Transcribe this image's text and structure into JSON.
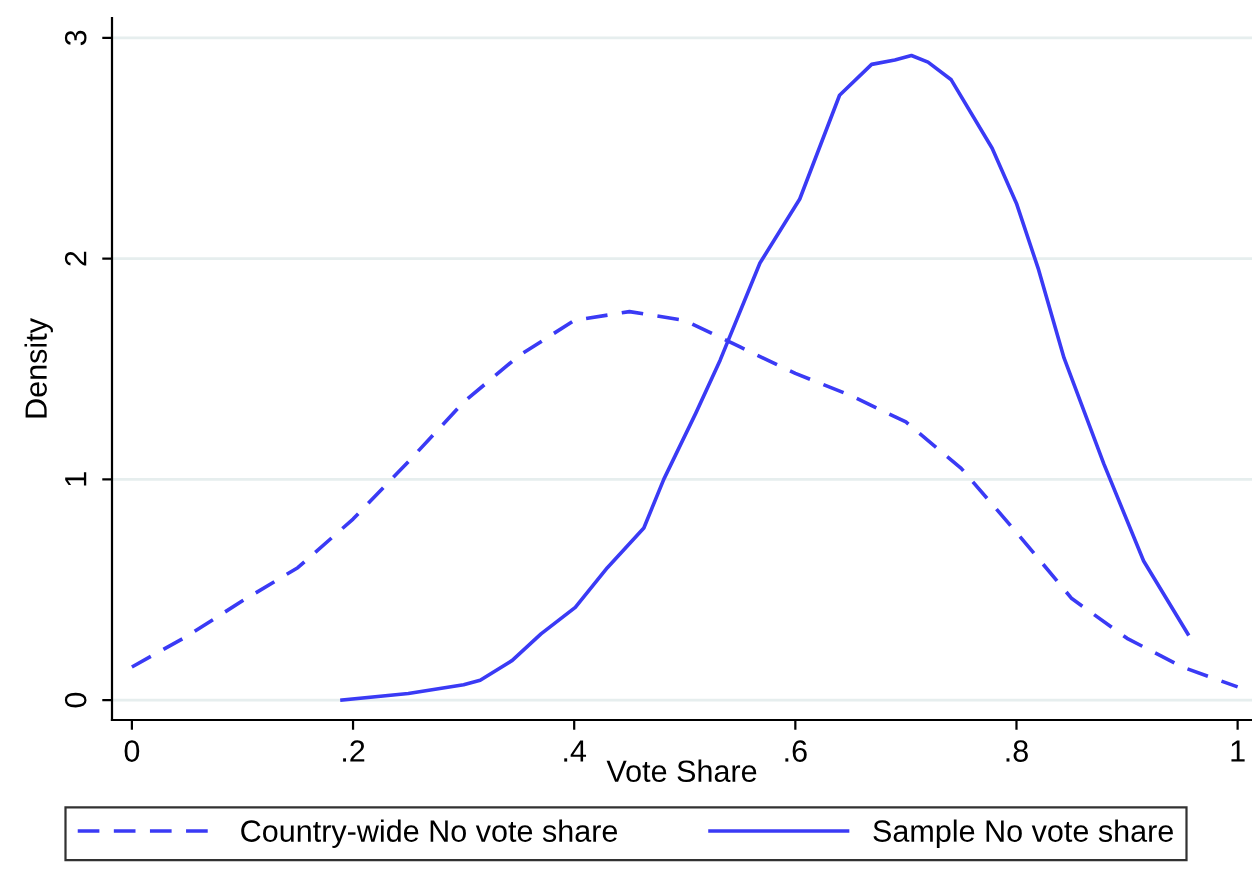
{
  "chart_data": {
    "type": "line",
    "xlabel": "Vote Share",
    "ylabel": "Density",
    "xlim": [
      -0.018,
      1.013
    ],
    "ylim": [
      -0.09,
      3.09
    ],
    "xticks": [
      {
        "value": 0,
        "label": "0"
      },
      {
        "value": 0.2,
        "label": ".2"
      },
      {
        "value": 0.4,
        "label": ".4"
      },
      {
        "value": 0.6,
        "label": ".6"
      },
      {
        "value": 0.8,
        "label": ".8"
      },
      {
        "value": 1,
        "label": "1"
      }
    ],
    "yticks": [
      0,
      1,
      2,
      3
    ],
    "grid": "y",
    "legend": "bottom",
    "series": [
      {
        "name": "Country-wide No vote share",
        "color": "#3a3af5",
        "line_style": "dashed",
        "x": [
          0,
          0.05,
          0.1,
          0.15,
          0.2,
          0.25,
          0.3,
          0.35,
          0.4,
          0.45,
          0.5,
          0.55,
          0.6,
          0.65,
          0.7,
          0.75,
          0.8,
          0.85,
          0.9,
          0.95,
          1.0
        ],
        "values": [
          0.15,
          0.29,
          0.45,
          0.6,
          0.82,
          1.08,
          1.35,
          1.56,
          1.72,
          1.76,
          1.72,
          1.6,
          1.48,
          1.38,
          1.26,
          1.05,
          0.76,
          0.46,
          0.28,
          0.15,
          0.06
        ]
      },
      {
        "name": "Sample No vote share",
        "color": "#3a3af5",
        "line_style": "solid",
        "x": [
          0.19,
          0.25,
          0.3,
          0.315,
          0.344,
          0.37,
          0.401,
          0.43,
          0.463,
          0.481,
          0.51,
          0.532,
          0.568,
          0.604,
          0.64,
          0.669,
          0.69,
          0.705,
          0.72,
          0.741,
          0.778,
          0.8,
          0.82,
          0.843,
          0.879,
          0.915,
          0.955
        ],
        "values": [
          0.0,
          0.03,
          0.07,
          0.09,
          0.18,
          0.3,
          0.42,
          0.6,
          0.78,
          1.0,
          1.3,
          1.54,
          1.98,
          2.27,
          2.74,
          2.88,
          2.9,
          2.92,
          2.89,
          2.81,
          2.5,
          2.25,
          1.95,
          1.55,
          1.07,
          0.63,
          0.3
        ]
      }
    ]
  }
}
